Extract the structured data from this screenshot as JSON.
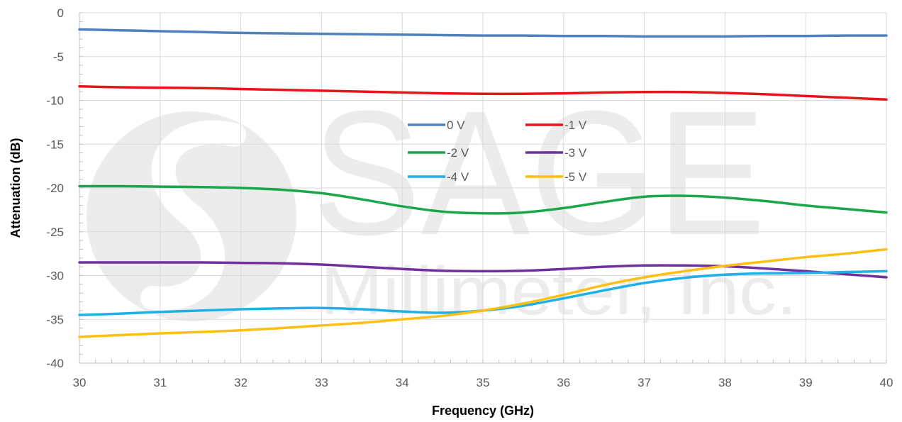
{
  "watermark": {
    "brand": "SAGE",
    "company": "Millimeter, Inc."
  },
  "chart_data": {
    "type": "line",
    "title": "",
    "xlabel": "Frequency (GHz)",
    "ylabel": "Attenuation (dB)",
    "xlim": [
      30,
      40
    ],
    "ylim": [
      -40,
      0
    ],
    "x_ticks": [
      30,
      31,
      32,
      33,
      34,
      35,
      36,
      37,
      38,
      39,
      40
    ],
    "y_ticks": [
      0,
      -5,
      -10,
      -15,
      -20,
      -25,
      -30,
      -35,
      -40
    ],
    "grid": true,
    "legend_position": "center",
    "x": [
      30,
      30.5,
      31,
      31.5,
      32,
      32.5,
      33,
      33.5,
      34,
      34.5,
      35,
      35.5,
      36,
      36.5,
      37,
      37.5,
      38,
      38.5,
      39,
      39.5,
      40
    ],
    "series": [
      {
        "name": "0 V",
        "color": "#4f81bd",
        "values": [
          -1.9,
          -2.0,
          -2.1,
          -2.2,
          -2.3,
          -2.35,
          -2.4,
          -2.45,
          -2.5,
          -2.55,
          -2.6,
          -2.6,
          -2.65,
          -2.65,
          -2.7,
          -2.7,
          -2.7,
          -2.65,
          -2.65,
          -2.6,
          -2.6
        ]
      },
      {
        "name": "-1 V",
        "color": "#e8141b",
        "values": [
          -8.4,
          -8.5,
          -8.55,
          -8.6,
          -8.7,
          -8.8,
          -8.9,
          -9.0,
          -9.1,
          -9.2,
          -9.25,
          -9.25,
          -9.2,
          -9.1,
          -9.05,
          -9.05,
          -9.15,
          -9.3,
          -9.5,
          -9.7,
          -9.9
        ]
      },
      {
        "name": "-2 V",
        "color": "#1aa64a",
        "values": [
          -19.8,
          -19.8,
          -19.85,
          -19.9,
          -20.0,
          -20.2,
          -20.6,
          -21.3,
          -22.1,
          -22.7,
          -22.9,
          -22.8,
          -22.3,
          -21.6,
          -21.0,
          -20.9,
          -21.1,
          -21.5,
          -22.0,
          -22.4,
          -22.8
        ]
      },
      {
        "name": "-3 V",
        "color": "#7030a0",
        "values": [
          -28.5,
          -28.5,
          -28.5,
          -28.5,
          -28.55,
          -28.6,
          -28.75,
          -29.0,
          -29.25,
          -29.45,
          -29.5,
          -29.45,
          -29.25,
          -29.0,
          -28.85,
          -28.85,
          -28.95,
          -29.2,
          -29.5,
          -29.85,
          -30.2
        ]
      },
      {
        "name": "-4 V",
        "color": "#1fb1e6",
        "values": [
          -34.5,
          -34.35,
          -34.15,
          -34.0,
          -33.85,
          -33.75,
          -33.7,
          -33.85,
          -34.1,
          -34.25,
          -34.0,
          -33.45,
          -32.6,
          -31.7,
          -30.85,
          -30.25,
          -29.9,
          -29.75,
          -29.7,
          -29.6,
          -29.5
        ]
      },
      {
        "name": "-5 V",
        "color": "#fdbf12",
        "values": [
          -37.0,
          -36.8,
          -36.6,
          -36.45,
          -36.25,
          -36.0,
          -35.7,
          -35.4,
          -35.0,
          -34.6,
          -34.0,
          -33.2,
          -32.2,
          -31.1,
          -30.2,
          -29.5,
          -28.9,
          -28.4,
          -27.9,
          -27.5,
          -27.0
        ]
      }
    ]
  }
}
